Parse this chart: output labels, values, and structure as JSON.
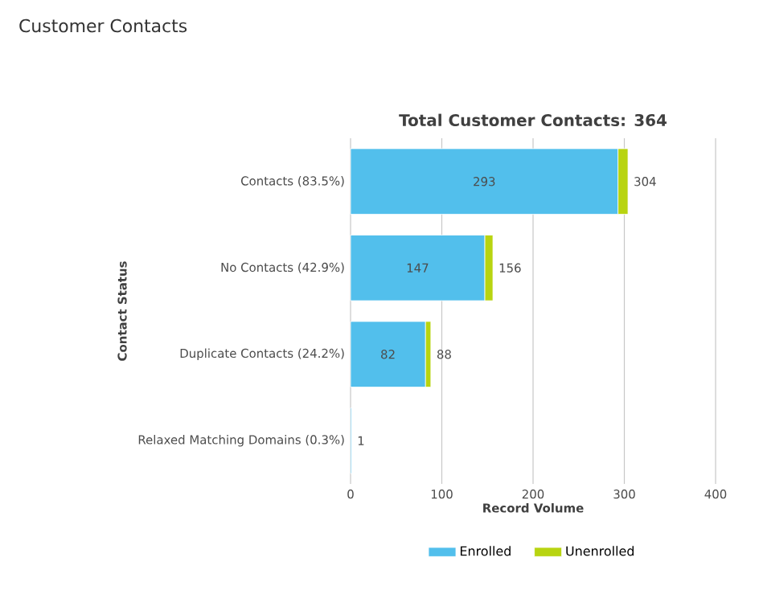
{
  "chart_data": {
    "type": "bar",
    "orientation": "horizontal",
    "stacked": true,
    "title": "Customer Contacts",
    "subtitle": "Total Customer Contacts: 364",
    "xlabel": "Record Volume",
    "ylabel": "Contact Status",
    "categories": [
      "Contacts (83.5%)",
      "No Contacts (42.9%)",
      "Duplicate Contacts (24.2%)",
      "Relaxed Matching Domains (0.3%)"
    ],
    "series": [
      {
        "name": "Enrolled",
        "color": "#52bfec",
        "values": [
          293,
          147,
          82,
          1
        ],
        "value_labels": [
          "293",
          "147",
          "82",
          null
        ]
      },
      {
        "name": "Unenrolled",
        "color": "#b8d411",
        "values": [
          11,
          9,
          6,
          0
        ]
      }
    ],
    "totals": [
      "304",
      "156",
      "88",
      "1"
    ],
    "xlim": [
      0,
      400
    ],
    "xticks": [
      0,
      100,
      200,
      300,
      400
    ],
    "grid": "x",
    "legend": "bottom"
  }
}
